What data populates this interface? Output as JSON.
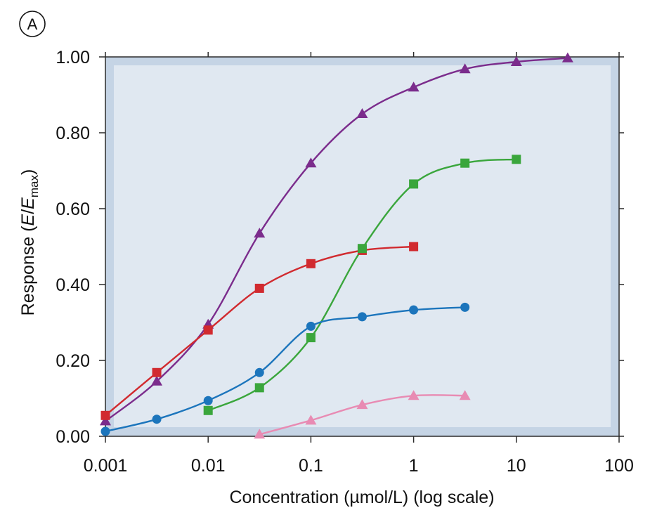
{
  "panel_label": "A",
  "chart_data": {
    "type": "line",
    "title": "",
    "xlabel": "Concentration (µmol/L) (log scale)",
    "ylabel_parts": {
      "prefix": "Response (",
      "e": "E",
      "slash": "/",
      "emax": "E",
      "max_sub": "max",
      "suffix": ")"
    },
    "x_scale": "log",
    "xlim": [
      0.001,
      100
    ],
    "ylim": [
      0,
      1.0
    ],
    "x_ticks": [
      0.001,
      0.01,
      0.1,
      1,
      10,
      100
    ],
    "x_tick_labels": [
      "0.001",
      "0.01",
      "0.1",
      "1",
      "10",
      "100"
    ],
    "y_ticks": [
      0,
      0.2,
      0.4,
      0.6,
      0.8,
      1.0
    ],
    "y_tick_labels": [
      "0.00",
      "0.20",
      "0.40",
      "0.60",
      "0.80",
      "1.00"
    ],
    "grid": false,
    "series": [
      {
        "color": "#7b2c8c",
        "marker": "triangle",
        "x": [
          0.001,
          0.00316,
          0.01,
          0.0316,
          0.1,
          0.316,
          1,
          3.16,
          10,
          31.6
        ],
        "y": [
          0.04,
          0.145,
          0.295,
          0.535,
          0.72,
          0.85,
          0.92,
          0.968,
          0.987,
          0.997
        ]
      },
      {
        "color": "#d12a2f",
        "marker": "square",
        "x": [
          0.001,
          0.00316,
          0.01,
          0.0316,
          0.1,
          0.316,
          1
        ],
        "y": [
          0.055,
          0.168,
          0.28,
          0.39,
          0.455,
          0.49,
          0.5
        ]
      },
      {
        "color": "#3aa63c",
        "marker": "square",
        "x": [
          0.01,
          0.0316,
          0.1,
          0.316,
          1,
          3.16,
          10
        ],
        "y": [
          0.068,
          0.128,
          0.26,
          0.495,
          0.665,
          0.72,
          0.73
        ]
      },
      {
        "color": "#1c75bc",
        "marker": "circle",
        "x": [
          0.001,
          0.00316,
          0.01,
          0.0316,
          0.1,
          0.316,
          1,
          3.16
        ],
        "y": [
          0.013,
          0.045,
          0.094,
          0.168,
          0.29,
          0.315,
          0.333,
          0.34
        ]
      },
      {
        "color": "#e88bb3",
        "marker": "triangle",
        "x": [
          0.0316,
          0.1,
          0.316,
          1,
          3.16
        ],
        "y": [
          0.005,
          0.042,
          0.083,
          0.107,
          0.107
        ]
      }
    ]
  }
}
